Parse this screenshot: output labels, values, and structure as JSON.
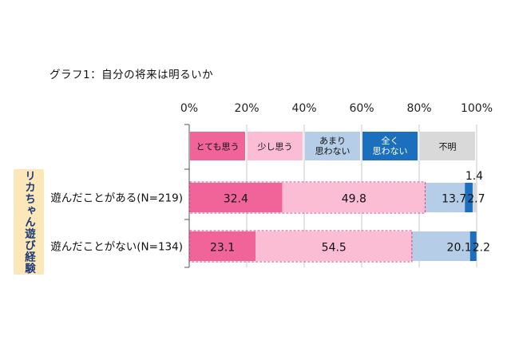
{
  "title": "グラフ1：自分の将来は明るいか",
  "side_label": "リカちゃん遊び経験",
  "colors": {
    "very_much": "#f0649a",
    "somewhat": "#fbbdd4",
    "not_much": "#b5cde6",
    "not_at_all": "#1b6fbd",
    "unknown": "#d9d9d9"
  },
  "chart_data": {
    "type": "bar",
    "orientation": "horizontal",
    "stacked": true,
    "title": "グラフ1：自分の将来は明るいか",
    "xlim": [
      0,
      100
    ],
    "x_ticks": [
      "0%",
      "20%",
      "40%",
      "60%",
      "80%",
      "100%"
    ],
    "categories": [
      "遊んだことがある(N=219)",
      "遊んだことがない(N=134)"
    ],
    "legend": [
      {
        "key": "very_much",
        "lines": [
          "とても思う"
        ]
      },
      {
        "key": "somewhat",
        "lines": [
          "少し思う"
        ]
      },
      {
        "key": "not_much",
        "lines": [
          "あまり",
          "思わない"
        ]
      },
      {
        "key": "not_at_all",
        "lines": [
          "全く",
          "思わない"
        ]
      },
      {
        "key": "unknown",
        "lines": [
          "不明"
        ]
      }
    ],
    "series": [
      {
        "key": "very_much",
        "values": [
          32.4,
          23.1
        ],
        "labels": [
          "32.4",
          "23.1"
        ]
      },
      {
        "key": "somewhat",
        "values": [
          49.8,
          54.5
        ],
        "labels": [
          "49.8",
          "54.5"
        ]
      },
      {
        "key": "not_much",
        "values": [
          13.7,
          20.1
        ],
        "labels": [
          "13.7",
          "20.1"
        ]
      },
      {
        "key": "not_at_all",
        "values": [
          2.7,
          2.2
        ],
        "labels": [
          "2.7",
          "2.2"
        ]
      },
      {
        "key": "unknown",
        "values": [
          1.4,
          0.0
        ],
        "labels": [
          "1.4",
          ""
        ]
      }
    ]
  }
}
